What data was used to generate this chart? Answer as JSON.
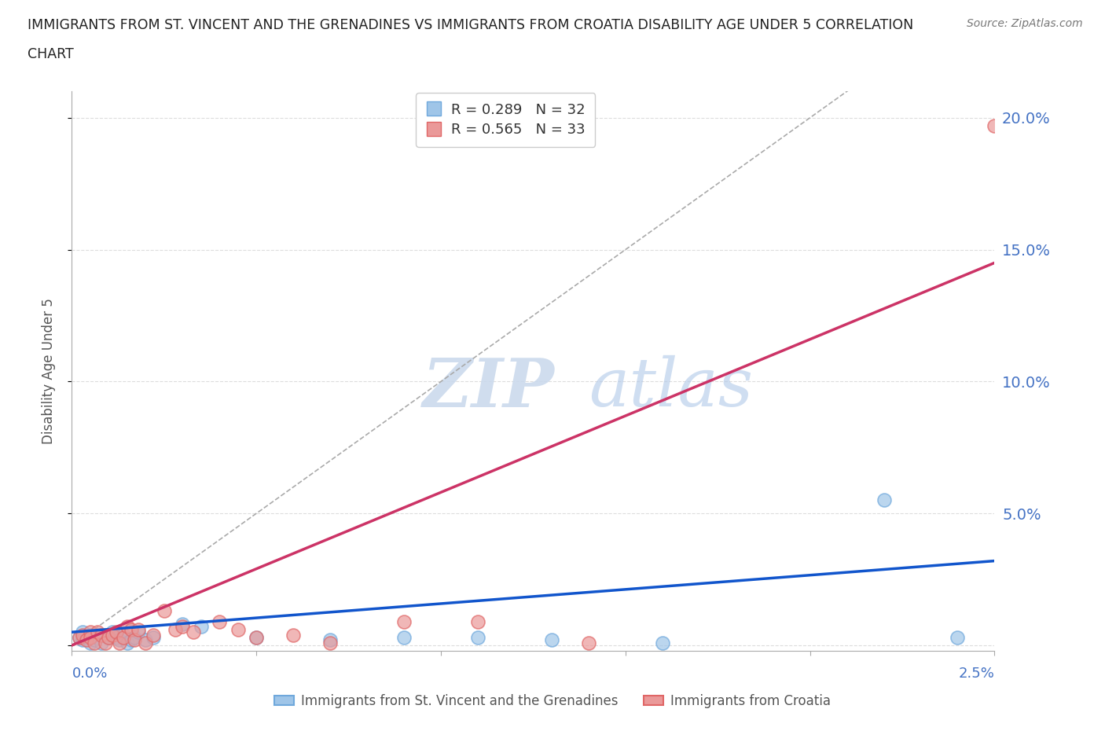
{
  "title_line1": "IMMIGRANTS FROM ST. VINCENT AND THE GRENADINES VS IMMIGRANTS FROM CROATIA DISABILITY AGE UNDER 5 CORRELATION",
  "title_line2": "CHART",
  "source": "Source: ZipAtlas.com",
  "ylabel": "Disability Age Under 5",
  "blue_label": "Immigrants from St. Vincent and the Grenadines",
  "pink_label": "Immigrants from Croatia",
  "blue_R": "0.289",
  "blue_N": "32",
  "pink_R": "0.565",
  "pink_N": "33",
  "blue_color": "#9fc5e8",
  "pink_color": "#ea9999",
  "blue_edge_color": "#6fa8dc",
  "pink_edge_color": "#e06666",
  "blue_trend_color": "#1155cc",
  "pink_trend_color": "#cc3366",
  "blue_scatter_x": [
    0.0002,
    0.0003,
    0.0003,
    0.0004,
    0.0005,
    0.0005,
    0.0006,
    0.0007,
    0.0007,
    0.0008,
    0.0009,
    0.001,
    0.0011,
    0.0012,
    0.0013,
    0.0014,
    0.0015,
    0.0016,
    0.0017,
    0.0018,
    0.002,
    0.0022,
    0.003,
    0.0035,
    0.005,
    0.007,
    0.009,
    0.011,
    0.013,
    0.016,
    0.022,
    0.024
  ],
  "blue_scatter_y": [
    0.003,
    0.005,
    0.002,
    0.003,
    0.004,
    0.001,
    0.002,
    0.004,
    0.003,
    0.001,
    0.004,
    0.003,
    0.005,
    0.003,
    0.002,
    0.004,
    0.001,
    0.002,
    0.003,
    0.005,
    0.002,
    0.003,
    0.008,
    0.007,
    0.003,
    0.002,
    0.003,
    0.003,
    0.002,
    0.001,
    0.055,
    0.003
  ],
  "pink_scatter_x": [
    0.0002,
    0.0003,
    0.0004,
    0.0005,
    0.0005,
    0.0006,
    0.0007,
    0.0008,
    0.0009,
    0.001,
    0.0011,
    0.0012,
    0.0013,
    0.0014,
    0.0015,
    0.0016,
    0.0017,
    0.0018,
    0.002,
    0.0022,
    0.0025,
    0.0028,
    0.003,
    0.0033,
    0.004,
    0.0045,
    0.005,
    0.006,
    0.007,
    0.009,
    0.011,
    0.014,
    0.025
  ],
  "pink_scatter_y": [
    0.003,
    0.004,
    0.002,
    0.005,
    0.003,
    0.001,
    0.005,
    0.004,
    0.001,
    0.003,
    0.004,
    0.005,
    0.001,
    0.003,
    0.007,
    0.006,
    0.002,
    0.006,
    0.001,
    0.004,
    0.013,
    0.006,
    0.007,
    0.005,
    0.009,
    0.006,
    0.003,
    0.004,
    0.001,
    0.009,
    0.009,
    0.001,
    0.197
  ],
  "blue_trend_x": [
    0.0,
    0.025
  ],
  "blue_trend_y": [
    0.005,
    0.032
  ],
  "pink_trend_x": [
    0.0,
    0.025
  ],
  "pink_trend_y": [
    0.0,
    0.145
  ],
  "ref_line_x": [
    0.0,
    0.025
  ],
  "ref_line_y": [
    0.0,
    0.25
  ],
  "xlim": [
    0.0,
    0.025
  ],
  "ylim": [
    -0.002,
    0.21
  ],
  "y_ticks": [
    0.0,
    0.05,
    0.1,
    0.15,
    0.2
  ],
  "y_tick_labels": [
    "",
    "5.0%",
    "10.0%",
    "15.0%",
    "20.0%"
  ],
  "x_ticks": [
    0.0,
    0.005,
    0.01,
    0.015,
    0.02,
    0.025
  ],
  "background_color": "#ffffff",
  "grid_color": "#dddddd",
  "title_color": "#222222",
  "tick_label_color": "#4472c4"
}
